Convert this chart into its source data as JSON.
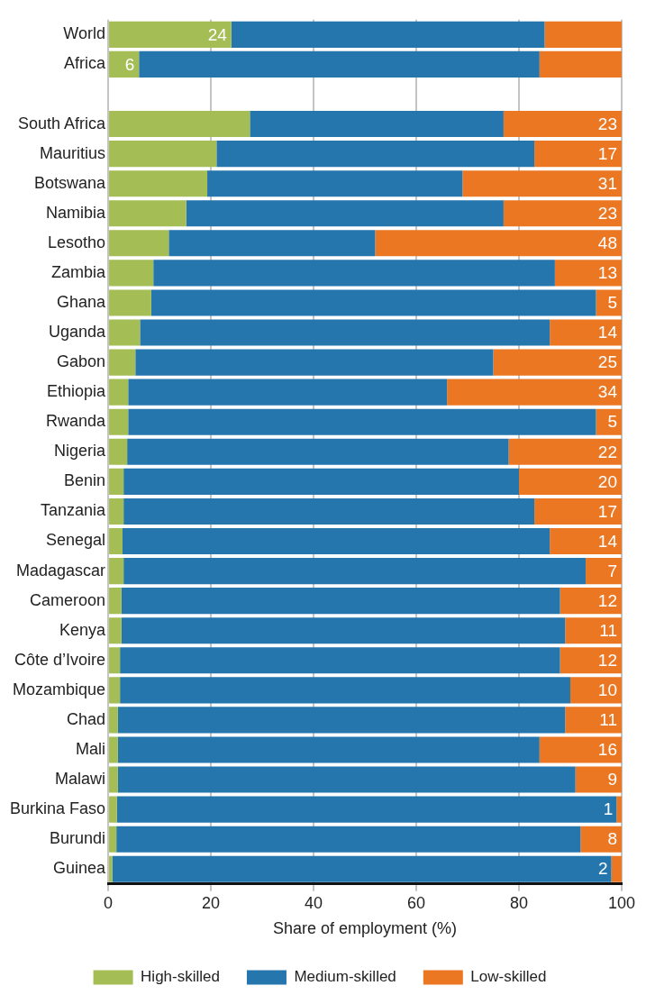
{
  "chart_data": {
    "type": "bar",
    "orientation": "horizontal",
    "stacked": true,
    "xlabel": "Share of employment (%)",
    "categories": [
      "World",
      "Africa",
      null,
      "South Africa",
      "Mauritius",
      "Botswana",
      "Namibia",
      "Lesotho",
      "Zambia",
      "Ghana",
      "Uganda",
      "Gabon",
      "Ethiopia",
      "Rwanda",
      "Nigeria",
      "Benin",
      "Tanzania",
      "Senegal",
      "Madagascar",
      "Cameroon",
      "Kenya",
      "Côte d’Ivoire",
      "Mozambique",
      "Chad",
      "Mali",
      "Malawi",
      "Burkina Faso",
      "Burundi",
      "Guinea"
    ],
    "series": [
      {
        "name": "High-skilled",
        "color": "#a5bd55",
        "values": [
          24,
          6,
          null,
          27.6,
          21.1,
          19.3,
          15.2,
          11.8,
          8.8,
          8.4,
          6.2,
          5.3,
          3.9,
          3.9,
          3.7,
          3.0,
          3.0,
          2.8,
          3.0,
          2.6,
          2.6,
          2.3,
          2.3,
          1.9,
          1.9,
          1.9,
          1.7,
          1.6,
          0.8
        ],
        "value_labels": [
          "24",
          "6",
          null,
          null,
          null,
          null,
          null,
          null,
          null,
          null,
          null,
          null,
          null,
          null,
          null,
          null,
          null,
          null,
          null,
          null,
          null,
          null,
          null,
          null,
          null,
          null,
          null,
          null,
          null
        ]
      },
      {
        "name": "Medium-skilled",
        "color": "#2676ae",
        "values": [
          61,
          78,
          null,
          49.4,
          61.9,
          49.7,
          61.8,
          40.2,
          78.2,
          86.6,
          79.8,
          69.7,
          62.1,
          91.1,
          74.3,
          77,
          80,
          83.2,
          90,
          85.4,
          86.4,
          85.7,
          87.7,
          87.1,
          82.1,
          89.1,
          97.3,
          90.4,
          97.2
        ]
      },
      {
        "name": "Low-skilled",
        "color": "#ec7723",
        "values": [
          15,
          16,
          null,
          23,
          17,
          31,
          23,
          48,
          13,
          5,
          14,
          25,
          34,
          5,
          22,
          20,
          17,
          14,
          7,
          12,
          11,
          12,
          10,
          11,
          16,
          9,
          1,
          8,
          2
        ],
        "value_labels": [
          null,
          null,
          null,
          "23",
          "17",
          "31",
          "23",
          "48",
          "13",
          "5",
          "14",
          "25",
          "34",
          "5",
          "22",
          "20",
          "17",
          "14",
          "7",
          "12",
          "11",
          "12",
          "10",
          "11",
          "16",
          "9",
          "1",
          "8",
          "2"
        ]
      }
    ],
    "xlim": [
      0,
      100
    ],
    "xticks": [
      0,
      20,
      40,
      60,
      80,
      100
    ],
    "grid": "x",
    "legend": "bottom"
  }
}
